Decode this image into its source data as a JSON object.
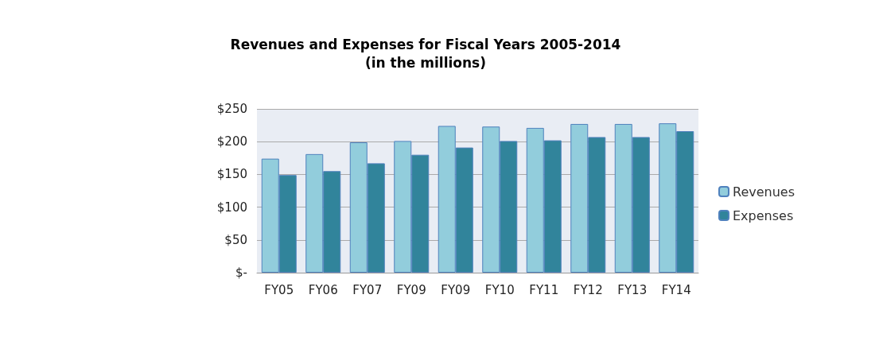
{
  "chart_data": {
    "type": "bar",
    "title": "Revenues and Expenses for Fiscal Years 2005-2014",
    "subtitle": "(in the millions)",
    "categories": [
      "FY05",
      "FY06",
      "FY07",
      "FY09",
      "FY09",
      "FY10",
      "FY11",
      "FY12",
      "FY13",
      "FY14"
    ],
    "series": [
      {
        "name": "Revenues",
        "color": "#92cddc",
        "values": [
          174,
          181,
          199,
          201,
          224,
          223,
          221,
          227,
          227,
          228
        ]
      },
      {
        "name": "Expenses",
        "color": "#31849b",
        "values": [
          149,
          155,
          167,
          180,
          191,
          201,
          202,
          207,
          207,
          216
        ]
      }
    ],
    "ylim": [
      0,
      250
    ],
    "yticks": [
      {
        "value": 0,
        "label": "$-"
      },
      {
        "value": 50,
        "label": "$50"
      },
      {
        "value": 100,
        "label": "$100"
      },
      {
        "value": 150,
        "label": "$150"
      },
      {
        "value": 200,
        "label": "$200"
      },
      {
        "value": 250,
        "label": "$250"
      }
    ],
    "grid": "y",
    "legend": "right"
  }
}
